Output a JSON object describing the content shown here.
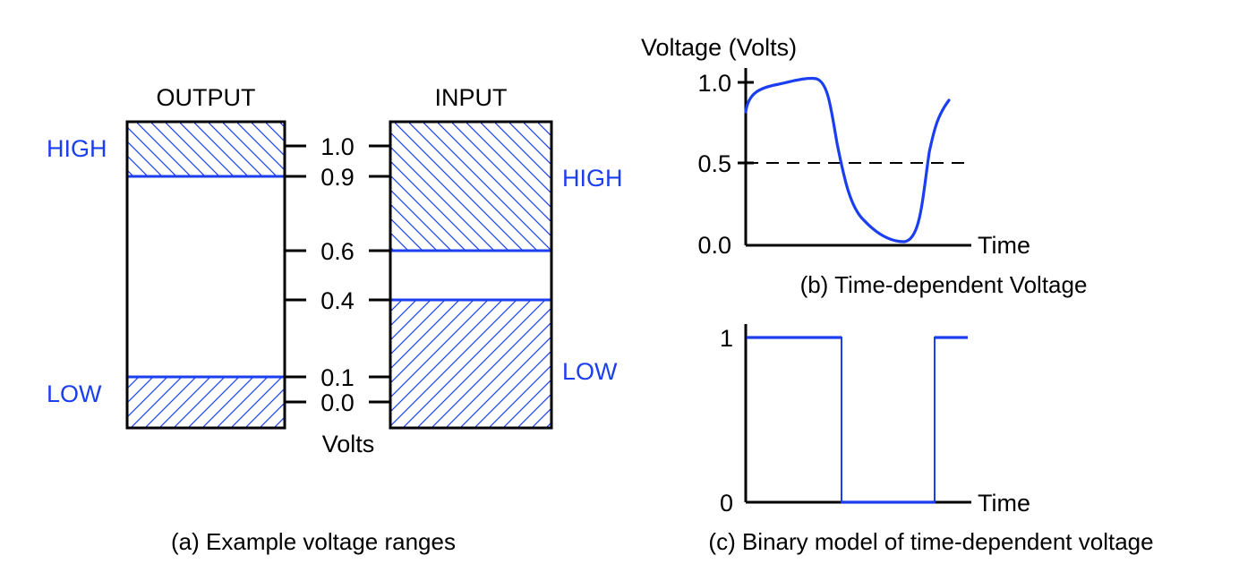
{
  "panel_a": {
    "output_label": "OUTPUT",
    "input_label": "INPUT",
    "output_high_label": "HIGH",
    "output_low_label": "LOW",
    "input_high_label": "HIGH",
    "input_low_label": "LOW",
    "scale_ticks": [
      "1.0",
      "0.9",
      "0.6",
      "0.4",
      "0.1",
      "0.0"
    ],
    "scale_unit": "Volts",
    "caption": "(a) Example voltage ranges"
  },
  "panel_b": {
    "ylabel": "Voltage (Volts)",
    "yticks": [
      "1.0",
      "0.5",
      "0.0"
    ],
    "xlabel": "Time",
    "caption": "(b) Time-dependent Voltage"
  },
  "panel_c": {
    "yticks": [
      "1",
      "0"
    ],
    "xlabel": "Time",
    "caption": "(c) Binary model of time-dependent voltage"
  },
  "colors": {
    "accent": "#1a3ef0",
    "line": "#000000"
  }
}
